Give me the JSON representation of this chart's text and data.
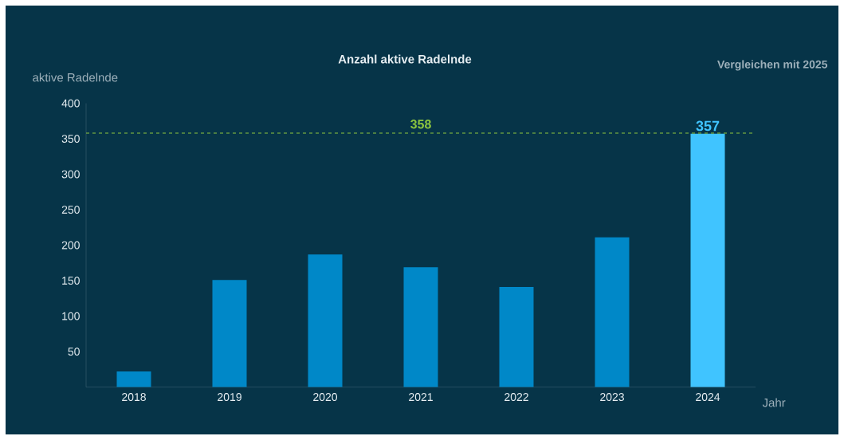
{
  "chart_data": {
    "type": "bar",
    "title": "Anzahl aktive Radelnde",
    "ylabel": "aktive Radelnde",
    "xlabel": "Jahr",
    "categories": [
      "2018",
      "2019",
      "2020",
      "2021",
      "2022",
      "2023",
      "2024"
    ],
    "values": [
      22,
      151,
      187,
      169,
      141,
      211,
      357
    ],
    "colors": [
      "#0088c8",
      "#0088c8",
      "#0088c8",
      "#0088c8",
      "#0088c8",
      "#0088c8",
      "#40c4ff"
    ],
    "value_labels": [
      null,
      null,
      null,
      null,
      null,
      null,
      "357"
    ],
    "ylim": [
      0,
      400
    ],
    "yticks": [
      50,
      100,
      150,
      200,
      250,
      300,
      350,
      400
    ],
    "ref_lines": [
      {
        "axis": "y",
        "value": 358,
        "label": "358",
        "color": "#8dc63f",
        "line_style": "dashed"
      }
    ],
    "annotations": [
      "Vergleichen mit 2025"
    ],
    "grid": false
  }
}
